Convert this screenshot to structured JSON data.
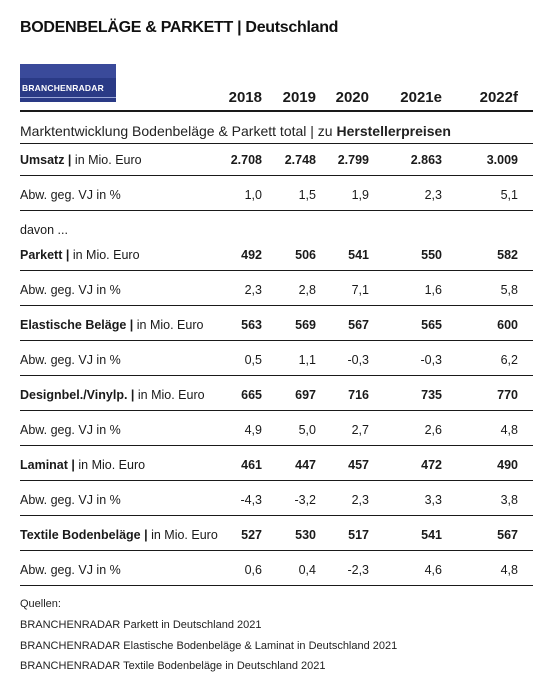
{
  "title": "BODENBELÄGE & PARKETT | Deutschland",
  "logo": {
    "text": "BRANCHENRADAR"
  },
  "years": [
    "2018",
    "2019",
    "2020",
    "2021e",
    "2022f"
  ],
  "subtitle": {
    "prefix": "Marktentwicklung Bodenbeläge & Parkett total | zu ",
    "bold": "Herstellerpreisen"
  },
  "davon": "davon ...",
  "unit_suffix": " in Mio. Euro",
  "change_label": "Abw. geg. VJ in %",
  "sections": [
    {
      "name": "Umsatz |",
      "values": [
        "2.708",
        "2.748",
        "2.799",
        "2.863",
        "3.009"
      ],
      "change": [
        "1,0",
        "1,5",
        "1,9",
        "2,3",
        "5,1"
      ]
    },
    {
      "name": "Parkett |",
      "values": [
        "492",
        "506",
        "541",
        "550",
        "582"
      ],
      "change": [
        "2,3",
        "2,8",
        "7,1",
        "1,6",
        "5,8"
      ]
    },
    {
      "name": "Elastische Beläge |",
      "values": [
        "563",
        "569",
        "567",
        "565",
        "600"
      ],
      "change": [
        "0,5",
        "1,1",
        "-0,3",
        "-0,3",
        "6,2"
      ]
    },
    {
      "name": "Designbel./Vinylp. |",
      "values": [
        "665",
        "697",
        "716",
        "735",
        "770"
      ],
      "change": [
        "4,9",
        "5,0",
        "2,7",
        "2,6",
        "4,8"
      ]
    },
    {
      "name": "Laminat |",
      "values": [
        "461",
        "447",
        "457",
        "472",
        "490"
      ],
      "change": [
        "-4,3",
        "-3,2",
        "2,3",
        "3,3",
        "3,8"
      ]
    },
    {
      "name": "Textile Bodenbeläge |",
      "values": [
        "527",
        "530",
        "517",
        "541",
        "567"
      ],
      "change": [
        "0,6",
        "0,4",
        "-2,3",
        "4,6",
        "4,8"
      ]
    }
  ],
  "sources": {
    "heading": "Quellen:",
    "items": [
      "BRANCHENRADAR Parkett in Deutschland 2021",
      "BRANCHENRADAR Elastische Bodenbeläge & Laminat in Deutschland 2021",
      "BRANCHENRADAR Textile Bodenbeläge in Deutschland 2021"
    ]
  }
}
